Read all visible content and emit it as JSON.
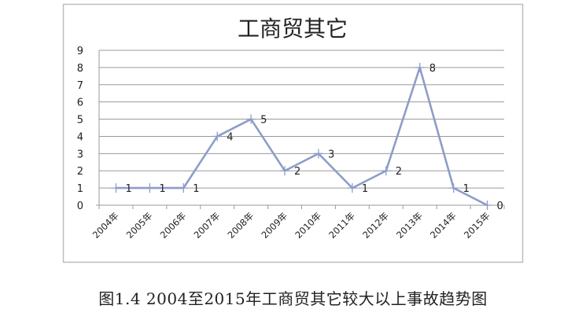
{
  "chart_data": {
    "type": "line",
    "title": "工商贸其它",
    "categories": [
      "2004年",
      "2005年",
      "2006年",
      "2007年",
      "2008年",
      "2009年",
      "2010年",
      "2011年",
      "2012年",
      "2013年",
      "2014年",
      "2015年"
    ],
    "values": [
      1,
      1,
      1,
      4,
      5,
      2,
      3,
      1,
      2,
      8,
      1,
      0
    ],
    "data_labels": [
      "1",
      "1",
      "1",
      "4",
      "5",
      "2",
      "3",
      "1",
      "2",
      "8",
      "1",
      "0"
    ],
    "ylim": [
      0,
      9
    ],
    "yticks": [
      "0",
      "1",
      "2",
      "3",
      "4",
      "5",
      "6",
      "7",
      "8",
      "9"
    ],
    "grid": true,
    "legend": "none",
    "line_color": "#8e9dc8"
  },
  "caption": "图1.4 2004至2015年工商贸其它较大以上事故趋势图"
}
